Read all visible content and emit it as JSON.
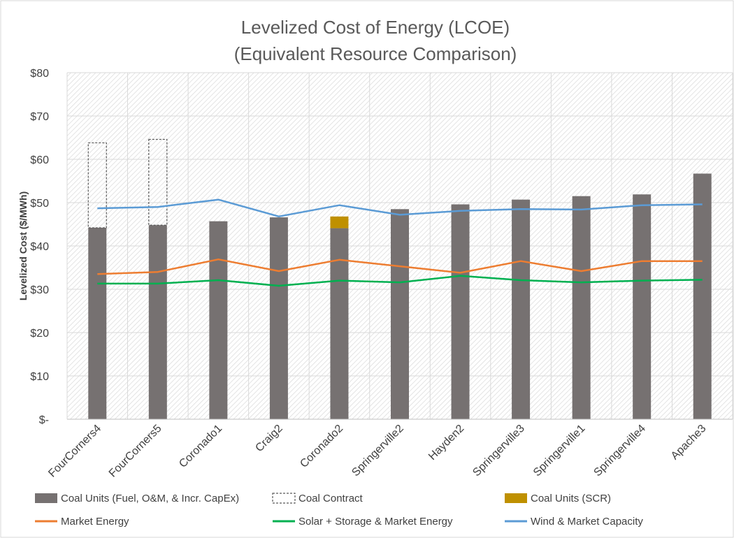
{
  "chart_data": {
    "type": "bar",
    "title": "Levelized Cost of Energy (LCOE)",
    "subtitle": "(Equivalent Resource Comparison)",
    "ylabel": "Levelized Cost ($/MWh)",
    "xlabel": "",
    "ylim": [
      0,
      80
    ],
    "y_ticks": [
      {
        "value": 0,
        "label": "$-"
      },
      {
        "value": 10,
        "label": "$10"
      },
      {
        "value": 20,
        "label": "$20"
      },
      {
        "value": 30,
        "label": "$30"
      },
      {
        "value": 40,
        "label": "$40"
      },
      {
        "value": 50,
        "label": "$50"
      },
      {
        "value": 60,
        "label": "$60"
      },
      {
        "value": 70,
        "label": "$70"
      },
      {
        "value": 80,
        "label": "$80"
      }
    ],
    "grid": true,
    "legend_position": "bottom",
    "categories": [
      "FourCorners4",
      "FourCorners5",
      "Coronado1",
      "Craig2",
      "Coronado2",
      "Springerville2",
      "Hayden2",
      "Springerville3",
      "Springerville1",
      "Springerville4",
      "Apache3"
    ],
    "bar_series": [
      {
        "name": "Coal Units (Fuel, O&M, & Incr. CapEx)",
        "style": "solid",
        "color": "#767171",
        "values": [
          44.2,
          44.8,
          45.7,
          46.6,
          44.1,
          48.5,
          49.6,
          50.7,
          51.5,
          51.9,
          56.7
        ]
      },
      {
        "name": "Coal Contract",
        "style": "dashed-outline",
        "color": "#595959",
        "values": [
          19.6,
          19.8,
          0,
          0,
          0,
          0,
          0,
          0,
          0,
          0,
          0
        ]
      },
      {
        "name": "Coal Units (SCR)",
        "style": "solid",
        "color": "#BF9000",
        "values": [
          0,
          0,
          0,
          0,
          2.7,
          0,
          0,
          0,
          0,
          0,
          0
        ]
      }
    ],
    "line_series": [
      {
        "name": "Market Energy",
        "color": "#ED7D31",
        "values": [
          33.5,
          34.0,
          36.9,
          34.2,
          36.8,
          35.3,
          33.8,
          36.5,
          34.2,
          36.5,
          36.5
        ]
      },
      {
        "name": "Solar + Storage & Market Energy",
        "color": "#00B050",
        "values": [
          31.3,
          31.3,
          32.1,
          30.8,
          32.0,
          31.6,
          33.1,
          32.1,
          31.6,
          32.0,
          32.2
        ]
      },
      {
        "name": "Wind & Market Capacity",
        "color": "#5B9BD5",
        "values": [
          48.7,
          49.0,
          50.7,
          46.8,
          49.4,
          47.2,
          48.1,
          48.5,
          48.4,
          49.4,
          49.6
        ]
      }
    ]
  }
}
